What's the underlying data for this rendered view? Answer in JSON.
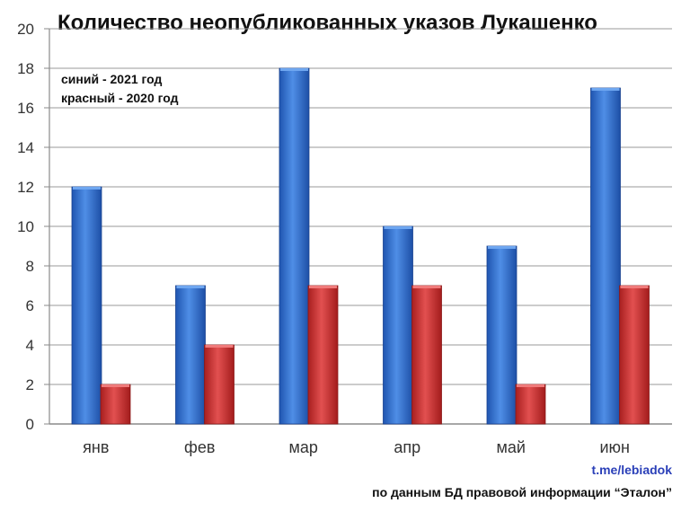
{
  "chart_data": {
    "type": "bar",
    "title": "Количество неопубликованных указов Лукашенко",
    "categories": [
      "янв",
      "фев",
      "мар",
      "апр",
      "май",
      "июн"
    ],
    "series": [
      {
        "name": "2021 год",
        "color": "#2f6fd0",
        "values": [
          12,
          7,
          18,
          10,
          9,
          17
        ]
      },
      {
        "name": "2020 год",
        "color": "#d23a3a",
        "values": [
          2,
          4,
          7,
          7,
          2,
          7
        ]
      }
    ],
    "ylim": [
      0,
      20
    ],
    "yticks": [
      0,
      2,
      4,
      6,
      8,
      10,
      12,
      14,
      16,
      18,
      20
    ],
    "grid": true
  },
  "legend": {
    "line1": "синий - 2021 год",
    "line2": "красный - 2020 год"
  },
  "footer": {
    "link": "t.me/lebiadok",
    "note": "по данным БД правовой информации “Эталон”"
  }
}
